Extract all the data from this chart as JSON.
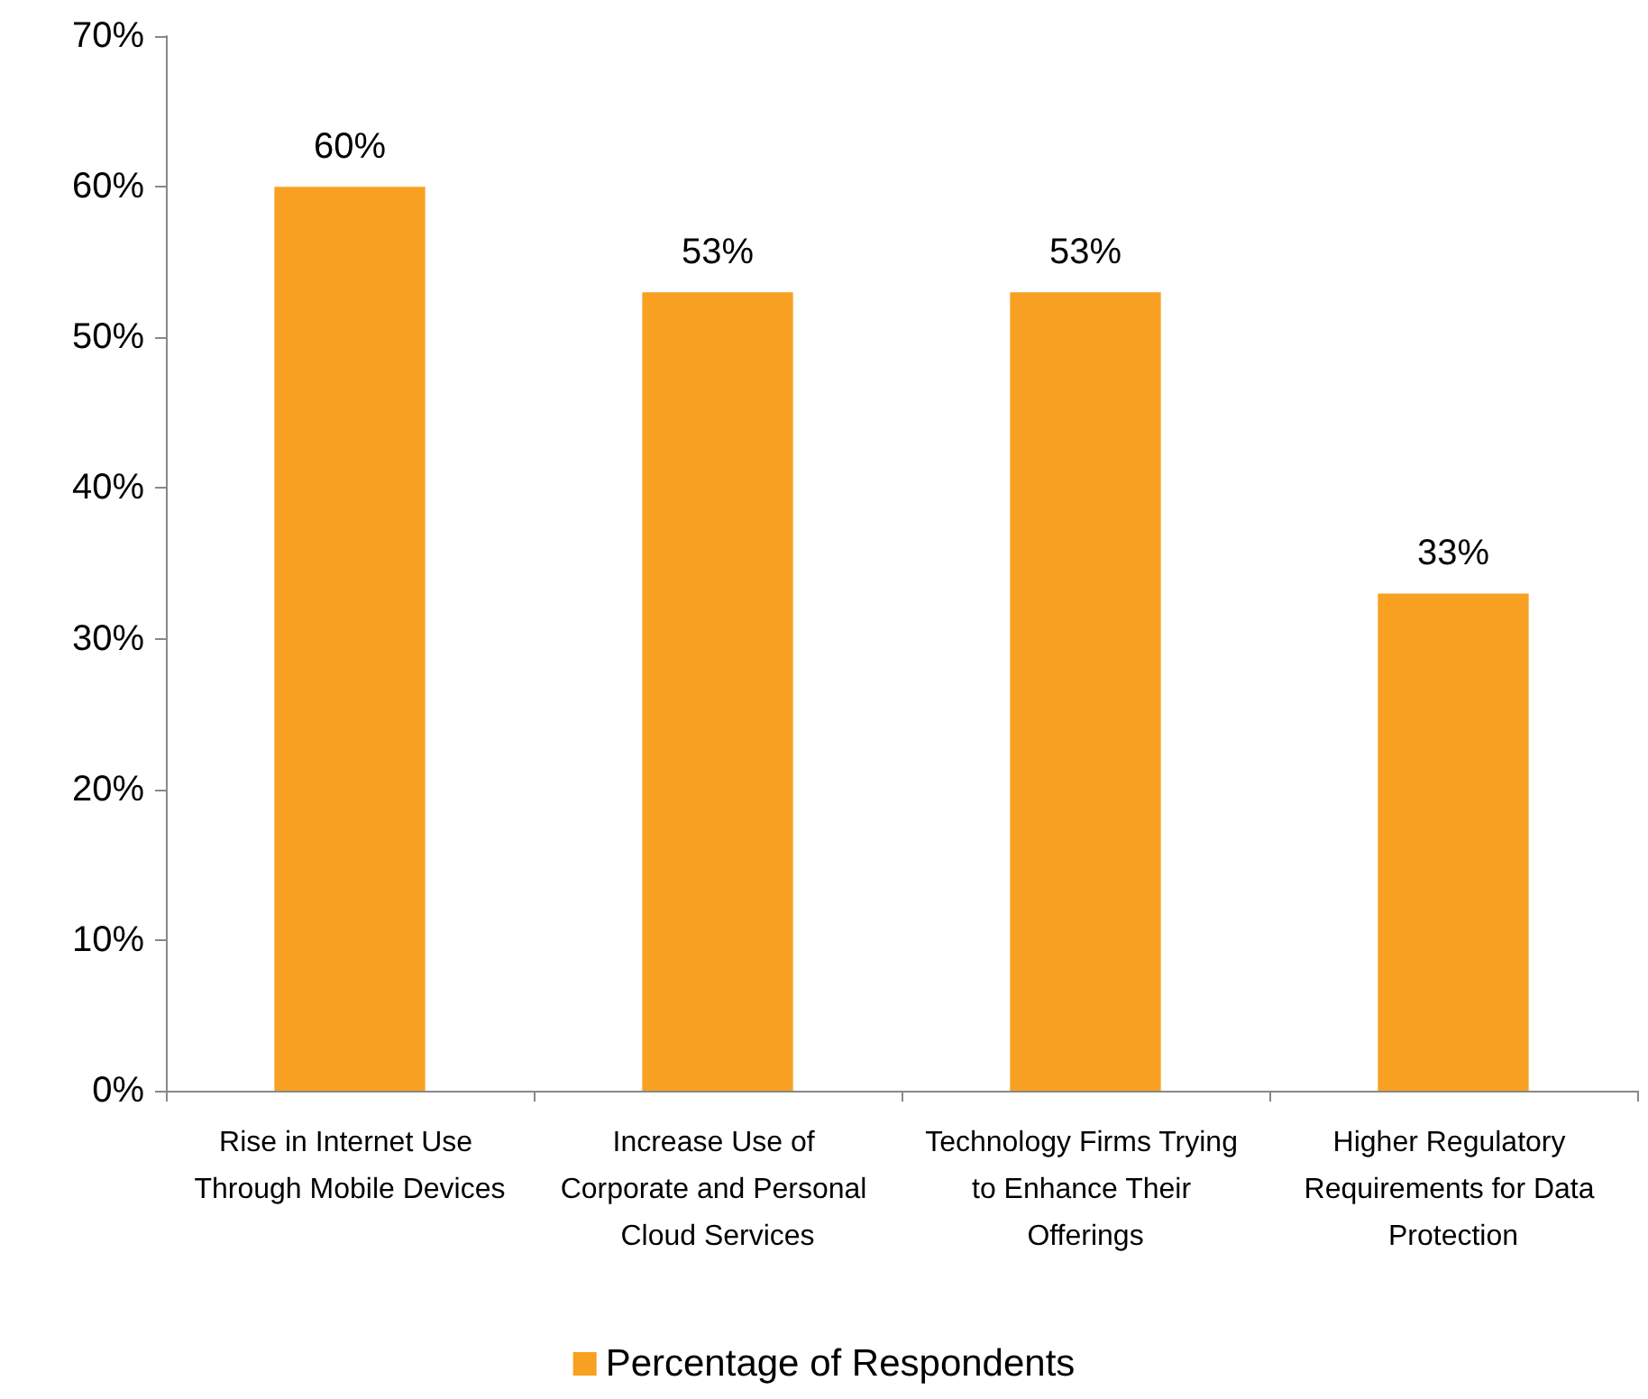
{
  "chart_data": {
    "type": "bar",
    "categories": [
      "Rise in Internet Use Through Mobile Devices",
      "Increase Use of Corporate and Personal Cloud Services",
      "Technology Firms Trying to Enhance Their Offerings",
      "Higher Regulatory Requirements for Data Protection"
    ],
    "series": [
      {
        "name": "Percentage of Respondents",
        "color": "#f7a021",
        "values": [
          60,
          53,
          53,
          33
        ],
        "value_labels": [
          "60%",
          "53%",
          "53%",
          "33%"
        ]
      }
    ],
    "ylim": [
      0,
      70
    ],
    "yticks": [
      {
        "value": 0,
        "label": "0%"
      },
      {
        "value": 10,
        "label": "10%"
      },
      {
        "value": 20,
        "label": "20%"
      },
      {
        "value": 30,
        "label": "30%"
      },
      {
        "value": 40,
        "label": "40%"
      },
      {
        "value": 50,
        "label": "50%"
      },
      {
        "value": 60,
        "label": "60%"
      },
      {
        "value": 70,
        "label": "70%"
      }
    ],
    "grid": false,
    "legend": "bottom"
  }
}
